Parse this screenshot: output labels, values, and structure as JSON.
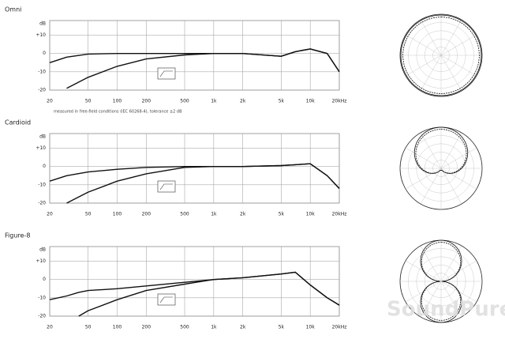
{
  "chart_data": [
    {
      "type": "line",
      "title": "Omni",
      "ylabel": "dB",
      "log_x": true,
      "grid": true,
      "annotation": "measured in free-field conditions (IEC 60268-4), tolerance ±2 dB",
      "xlim": [
        20,
        20000
      ],
      "ylim": [
        -20,
        18
      ],
      "xticks": [
        20,
        50,
        100,
        200,
        500,
        {
          "value": 1000,
          "label": "1k"
        },
        {
          "value": 2000,
          "label": "2k"
        },
        {
          "value": 5000,
          "label": "5k"
        },
        {
          "value": 10000,
          "label": "10k"
        },
        {
          "value": 20000,
          "label": "20kHz"
        }
      ],
      "yticks": [
        {
          "value": 10,
          "label": "+10"
        },
        0,
        -10,
        -20
      ],
      "x": [
        20,
        30,
        50,
        100,
        200,
        500,
        1000,
        2000,
        5000,
        7000,
        10000,
        15000,
        20000
      ],
      "series": [
        {
          "color": "#111",
          "values": [
            -5,
            -2,
            -0.3,
            0,
            0,
            0,
            0,
            0,
            -1.5,
            1,
            2.5,
            0,
            -10
          ]
        },
        {
          "color": "#111",
          "values": [
            null,
            -19,
            -13,
            -7,
            -3,
            -0.8,
            0,
            0,
            -1.5,
            1,
            2.5,
            0,
            -10
          ]
        }
      ]
    },
    {
      "type": "line",
      "title": "Cardioid",
      "ylabel": "dB",
      "log_x": true,
      "grid": true,
      "xlim": [
        20,
        20000
      ],
      "ylim": [
        -20,
        18
      ],
      "xticks": [
        20,
        50,
        100,
        200,
        500,
        {
          "value": 1000,
          "label": "1k"
        },
        {
          "value": 2000,
          "label": "2k"
        },
        {
          "value": 5000,
          "label": "5k"
        },
        {
          "value": 10000,
          "label": "10k"
        },
        {
          "value": 20000,
          "label": "20kHz"
        }
      ],
      "yticks": [
        {
          "value": 10,
          "label": "+10"
        },
        0,
        -10,
        -20
      ],
      "x": [
        20,
        30,
        50,
        100,
        200,
        500,
        1000,
        2000,
        5000,
        7000,
        10000,
        15000,
        20000
      ],
      "series": [
        {
          "color": "#111",
          "values": [
            -8,
            -5,
            -3,
            -1.5,
            -0.5,
            0,
            0,
            0,
            0.5,
            1,
            1.5,
            -5,
            -12
          ]
        },
        {
          "color": "#111",
          "values": [
            null,
            -20,
            -14,
            -8,
            -4,
            -0.5,
            0,
            0,
            0.5,
            1,
            1.5,
            -5,
            -12
          ]
        }
      ]
    },
    {
      "type": "line",
      "title": "Figure-8",
      "ylabel": "dB",
      "log_x": true,
      "grid": true,
      "xlim": [
        20,
        20000
      ],
      "ylim": [
        -20,
        18
      ],
      "xticks": [
        20,
        50,
        100,
        200,
        500,
        {
          "value": 1000,
          "label": "1k"
        },
        {
          "value": 2000,
          "label": "2k"
        },
        {
          "value": 5000,
          "label": "5k"
        },
        {
          "value": 10000,
          "label": "10k"
        },
        {
          "value": 20000,
          "label": "20kHz"
        }
      ],
      "yticks": [
        {
          "value": 10,
          "label": "+10"
        },
        0,
        -10,
        -20
      ],
      "x": [
        20,
        30,
        40,
        50,
        100,
        200,
        500,
        1000,
        2000,
        5000,
        7000,
        10000,
        15000,
        20000
      ],
      "series": [
        {
          "color": "#111",
          "values": [
            -11,
            -9,
            -7,
            -6,
            -5,
            -3.5,
            -1.5,
            0,
            1,
            3,
            4,
            -3,
            -10,
            -14
          ]
        },
        {
          "color": "#111",
          "values": [
            null,
            null,
            -20,
            -17,
            -11,
            -6,
            -2.5,
            0,
            1,
            3,
            4,
            -3,
            -10,
            -14
          ]
        }
      ]
    }
  ],
  "watermark": "SoundPure"
}
